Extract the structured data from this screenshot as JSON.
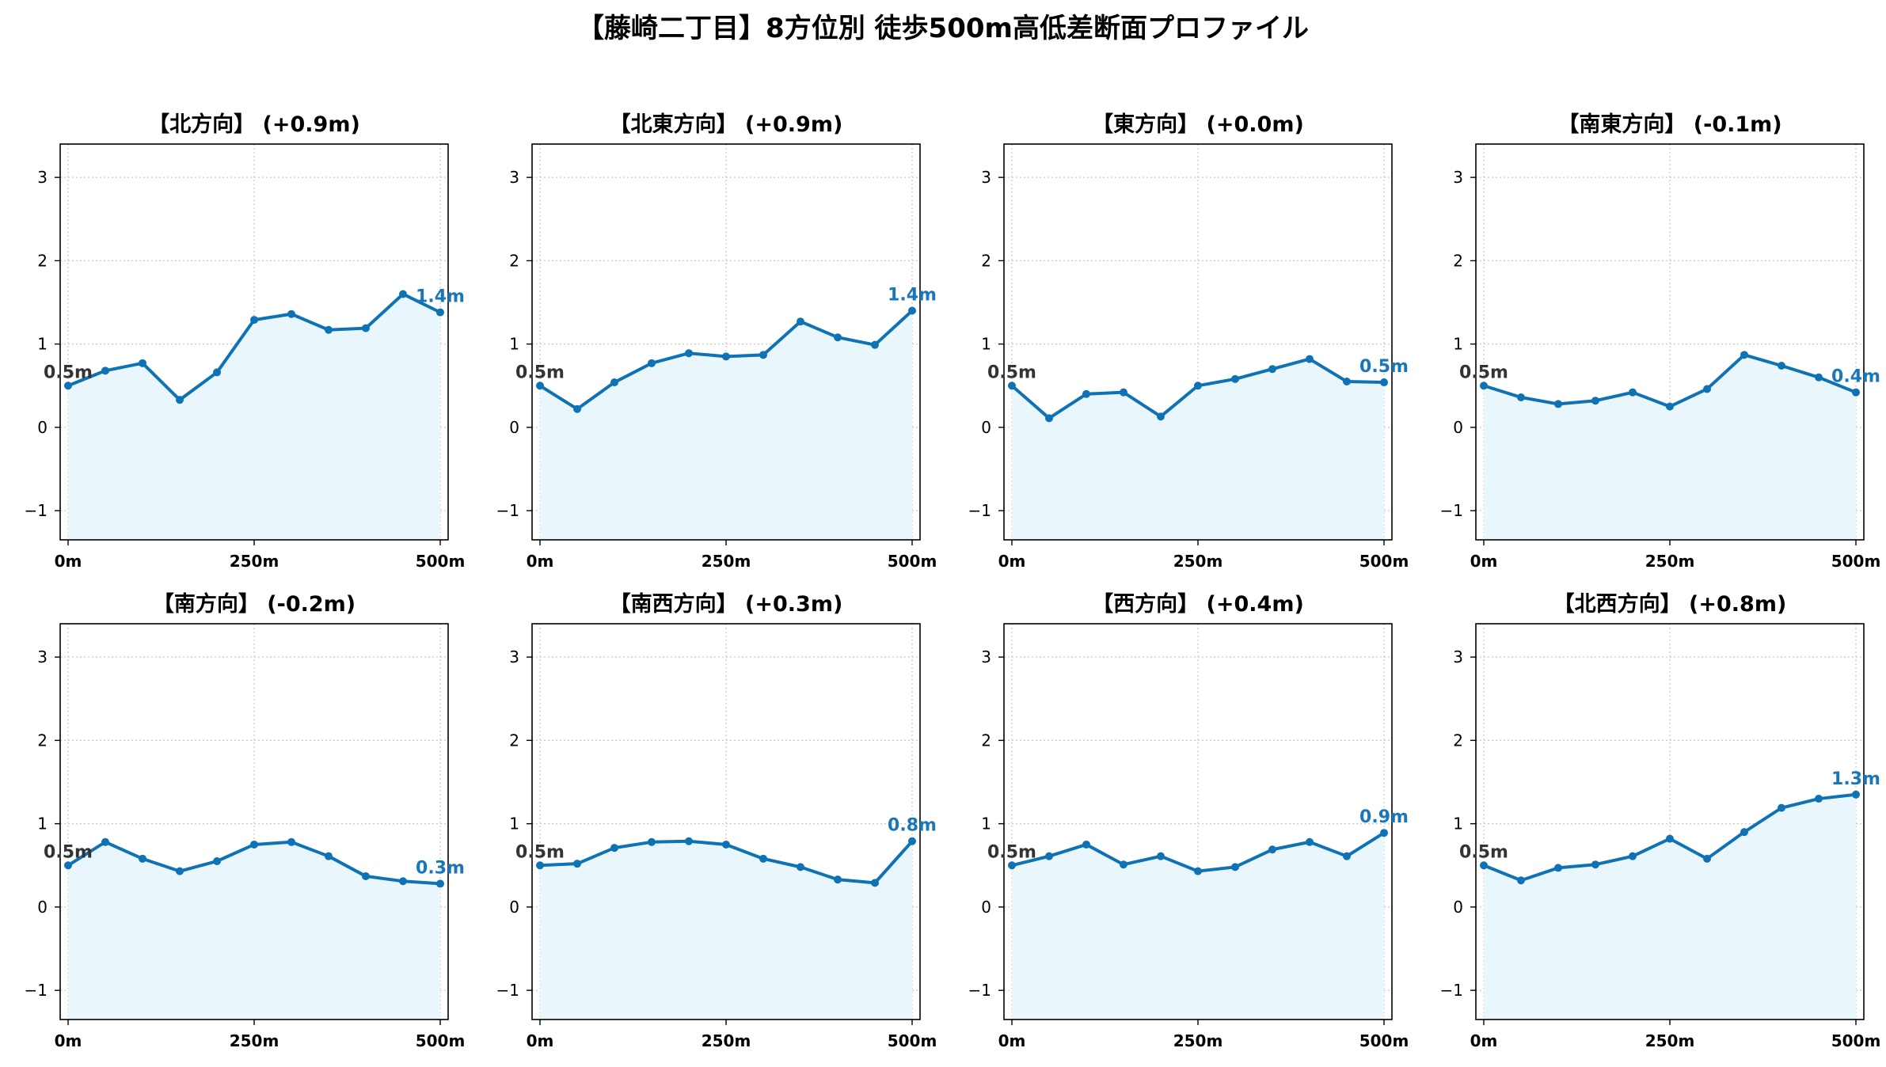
{
  "title": "【藤崎二丁目】8方位別 徒歩500m高低差断面プロファイル",
  "colors": {
    "line": "#0e72b4",
    "fill": "#e9f6fc",
    "grid": "#c8c8c8",
    "end_label": "#1976b8",
    "start_label": "#333333"
  },
  "chart_data": [
    {
      "type": "area",
      "title": "【北方向】 (+0.9m)",
      "x": [
        0,
        50,
        100,
        150,
        200,
        250,
        300,
        350,
        400,
        450,
        500
      ],
      "y": [
        0.5,
        0.68,
        0.77,
        0.33,
        0.66,
        1.29,
        1.36,
        1.17,
        1.19,
        1.6,
        1.38
      ],
      "start_label": "0.5m",
      "end_label": "1.4m",
      "xticks": [
        "0m",
        "250m",
        "500m"
      ],
      "yticks": [
        "−1",
        "0",
        "1",
        "2",
        "3"
      ],
      "xlim": [
        0,
        500
      ],
      "ylim": [
        -1.35,
        3.4
      ],
      "grid": true
    },
    {
      "type": "area",
      "title": "【北東方向】 (+0.9m)",
      "x": [
        0,
        50,
        100,
        150,
        200,
        250,
        300,
        350,
        400,
        450,
        500
      ],
      "y": [
        0.5,
        0.22,
        0.54,
        0.77,
        0.89,
        0.85,
        0.87,
        1.27,
        1.08,
        0.99,
        1.4
      ],
      "start_label": "0.5m",
      "end_label": "1.4m",
      "xticks": [
        "0m",
        "250m",
        "500m"
      ],
      "yticks": [
        "−1",
        "0",
        "1",
        "2",
        "3"
      ],
      "xlim": [
        0,
        500
      ],
      "ylim": [
        -1.35,
        3.4
      ],
      "grid": true
    },
    {
      "type": "area",
      "title": "【東方向】 (+0.0m)",
      "x": [
        0,
        50,
        100,
        150,
        200,
        250,
        300,
        350,
        400,
        450,
        500
      ],
      "y": [
        0.5,
        0.11,
        0.4,
        0.42,
        0.13,
        0.5,
        0.58,
        0.7,
        0.82,
        0.55,
        0.54
      ],
      "start_label": "0.5m",
      "end_label": "0.5m",
      "xticks": [
        "0m",
        "250m",
        "500m"
      ],
      "yticks": [
        "−1",
        "0",
        "1",
        "2",
        "3"
      ],
      "xlim": [
        0,
        500
      ],
      "ylim": [
        -1.35,
        3.4
      ],
      "grid": true
    },
    {
      "type": "area",
      "title": "【南東方向】 (-0.1m)",
      "x": [
        0,
        50,
        100,
        150,
        200,
        250,
        300,
        350,
        400,
        450,
        500
      ],
      "y": [
        0.5,
        0.36,
        0.28,
        0.32,
        0.42,
        0.25,
        0.46,
        0.87,
        0.74,
        0.6,
        0.42
      ],
      "start_label": "0.5m",
      "end_label": "0.4m",
      "xticks": [
        "0m",
        "250m",
        "500m"
      ],
      "yticks": [
        "−1",
        "0",
        "1",
        "2",
        "3"
      ],
      "xlim": [
        0,
        500
      ],
      "ylim": [
        -1.35,
        3.4
      ],
      "grid": true
    },
    {
      "type": "area",
      "title": "【南方向】 (-0.2m)",
      "x": [
        0,
        50,
        100,
        150,
        200,
        250,
        300,
        350,
        400,
        450,
        500
      ],
      "y": [
        0.5,
        0.78,
        0.58,
        0.43,
        0.55,
        0.75,
        0.78,
        0.61,
        0.37,
        0.31,
        0.28
      ],
      "start_label": "0.5m",
      "end_label": "0.3m",
      "xticks": [
        "0m",
        "250m",
        "500m"
      ],
      "yticks": [
        "−1",
        "0",
        "1",
        "2",
        "3"
      ],
      "xlim": [
        0,
        500
      ],
      "ylim": [
        -1.35,
        3.4
      ],
      "grid": true
    },
    {
      "type": "area",
      "title": "【南西方向】 (+0.3m)",
      "x": [
        0,
        50,
        100,
        150,
        200,
        250,
        300,
        350,
        400,
        450,
        500
      ],
      "y": [
        0.5,
        0.52,
        0.71,
        0.78,
        0.79,
        0.75,
        0.58,
        0.48,
        0.33,
        0.29,
        0.79
      ],
      "start_label": "0.5m",
      "end_label": "0.8m",
      "xticks": [
        "0m",
        "250m",
        "500m"
      ],
      "yticks": [
        "−1",
        "0",
        "1",
        "2",
        "3"
      ],
      "xlim": [
        0,
        500
      ],
      "ylim": [
        -1.35,
        3.4
      ],
      "grid": true
    },
    {
      "type": "area",
      "title": "【西方向】 (+0.4m)",
      "x": [
        0,
        50,
        100,
        150,
        200,
        250,
        300,
        350,
        400,
        450,
        500
      ],
      "y": [
        0.5,
        0.61,
        0.75,
        0.51,
        0.61,
        0.43,
        0.48,
        0.69,
        0.78,
        0.61,
        0.89
      ],
      "start_label": "0.5m",
      "end_label": "0.9m",
      "xticks": [
        "0m",
        "250m",
        "500m"
      ],
      "yticks": [
        "−1",
        "0",
        "1",
        "2",
        "3"
      ],
      "xlim": [
        0,
        500
      ],
      "ylim": [
        -1.35,
        3.4
      ],
      "grid": true
    },
    {
      "type": "area",
      "title": "【北西方向】 (+0.8m)",
      "x": [
        0,
        50,
        100,
        150,
        200,
        250,
        300,
        350,
        400,
        450,
        500
      ],
      "y": [
        0.5,
        0.32,
        0.47,
        0.51,
        0.61,
        0.82,
        0.58,
        0.9,
        1.19,
        1.3,
        1.35
      ],
      "start_label": "0.5m",
      "end_label": "1.3m",
      "xticks": [
        "0m",
        "250m",
        "500m"
      ],
      "yticks": [
        "−1",
        "0",
        "1",
        "2",
        "3"
      ],
      "xlim": [
        0,
        500
      ],
      "ylim": [
        -1.35,
        3.4
      ],
      "grid": true
    }
  ]
}
